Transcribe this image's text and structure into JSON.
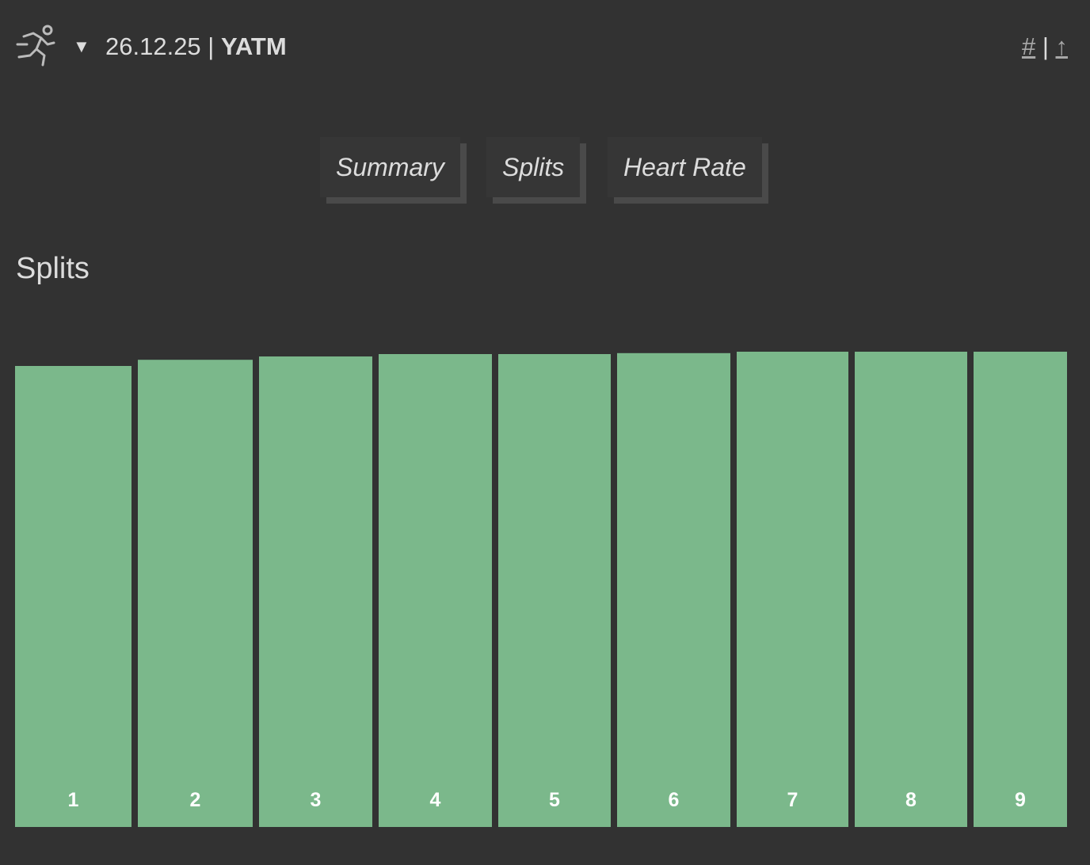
{
  "header": {
    "date": "26.12.25",
    "separator": "|",
    "name": "YATM",
    "toggle": "▼",
    "links": [
      "#",
      "|",
      "↑"
    ]
  },
  "tabs": [
    "Summary",
    "Splits",
    "Heart Rate"
  ],
  "chart_data": {
    "type": "bar",
    "title": "Splits",
    "categories": [
      "1",
      "2",
      "3",
      "4",
      "5",
      "6",
      "7",
      "8",
      "9"
    ],
    "values": [
      97,
      98.3,
      99,
      99.5,
      99.5,
      99.7,
      100,
      100,
      100
    ],
    "widths": [
      147,
      145,
      143,
      143,
      142,
      143,
      141,
      142,
      118
    ],
    "ylim": [
      0,
      100
    ],
    "color": "#7bb88b"
  }
}
